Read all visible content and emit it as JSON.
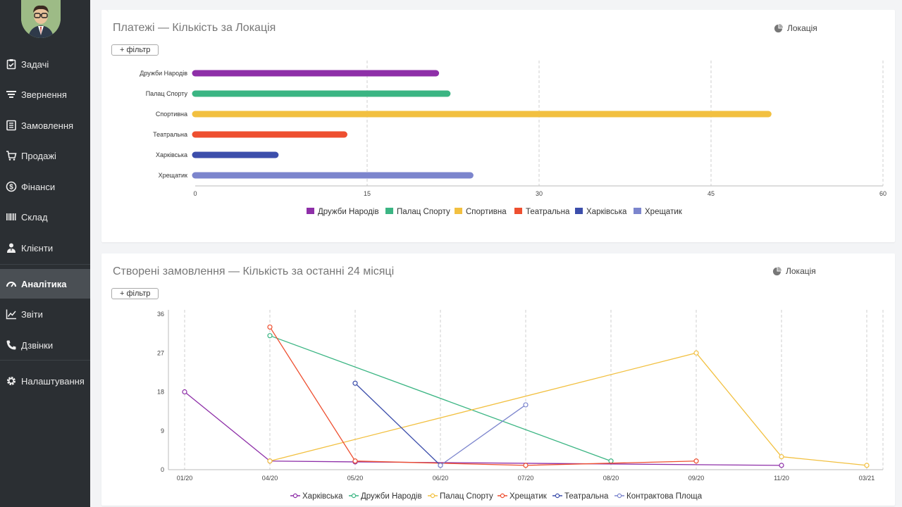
{
  "sidebar": {
    "items": [
      {
        "label": "Задачі",
        "icon": "clipboard-check-icon"
      },
      {
        "label": "Звернення",
        "icon": "filter-icon"
      },
      {
        "label": "Замовлення",
        "icon": "ledger-icon"
      },
      {
        "label": "Продажі",
        "icon": "cart-icon"
      },
      {
        "label": "Фінанси",
        "icon": "dollar-circle-icon"
      },
      {
        "label": "Склад",
        "icon": "barcode-icon"
      },
      {
        "label": "Клієнти",
        "icon": "user-tie-icon"
      },
      {
        "label": "Аналітика",
        "icon": "dashboard-gauge-icon",
        "active": true
      },
      {
        "label": "Звіти",
        "icon": "line-chart-icon"
      },
      {
        "label": "Дзвінки",
        "icon": "phone-icon"
      },
      {
        "label": "Налаштування",
        "icon": "gear-icon"
      }
    ]
  },
  "card1": {
    "title": "Платежі — Кількість за Локація",
    "group_label": "Локація",
    "filter_label": "+ фільтр"
  },
  "card2": {
    "title": "Створені замовлення — Кількість за останні 24 місяці",
    "group_label": "Локація",
    "filter_label": "+ фільтр"
  },
  "chart_data": [
    {
      "type": "bar",
      "orientation": "horizontal",
      "categories": [
        "Дружби Народів",
        "Палац Спорту",
        "Спортивна",
        "Театральна",
        "Харківська",
        "Хрещатик"
      ],
      "values": [
        21,
        22,
        50,
        13,
        7,
        24
      ],
      "colors": [
        "#8e2fa8",
        "#3bb583",
        "#f2c040",
        "#ee4f30",
        "#3c4eab",
        "#7c85cd"
      ],
      "xlim": [
        0,
        60
      ],
      "xticks": [
        0,
        15,
        30,
        45,
        60
      ],
      "grid": true,
      "legend_position": "bottom"
    },
    {
      "type": "line",
      "x": [
        "01/20",
        "04/20",
        "05/20",
        "06/20",
        "07/20",
        "08/20",
        "09/20",
        "11/20",
        "03/21"
      ],
      "ylim": [
        0,
        36
      ],
      "yticks": [
        0,
        9,
        18,
        27,
        36
      ],
      "grid": true,
      "legend_position": "bottom",
      "series": [
        {
          "name": "Харківська",
          "color": "#8e2fa8",
          "points": [
            [
              "01/20",
              18
            ],
            [
              "04/20",
              2
            ],
            [
              "05/20",
              1.8
            ],
            [
              "11/20",
              1
            ]
          ]
        },
        {
          "name": "Дружби Народів",
          "color": "#3bb583",
          "points": [
            [
              "04/20",
              31
            ],
            [
              "08/20",
              2
            ]
          ]
        },
        {
          "name": "Палац Спорту",
          "color": "#f2c040",
          "points": [
            [
              "04/20",
              2
            ],
            [
              "09/20",
              27
            ],
            [
              "11/20",
              3
            ],
            [
              "03/21",
              1
            ]
          ]
        },
        {
          "name": "Хрещатик",
          "color": "#ee4f30",
          "points": [
            [
              "04/20",
              33
            ],
            [
              "05/20",
              2
            ],
            [
              "07/20",
              1
            ],
            [
              "09/20",
              2
            ]
          ]
        },
        {
          "name": "Театральна",
          "color": "#3c4eab",
          "points": [
            [
              "05/20",
              20
            ],
            [
              "06/20",
              1
            ]
          ]
        },
        {
          "name": "Контрактова Площа",
          "color": "#7c85cd",
          "points": [
            [
              "06/20",
              1
            ],
            [
              "07/20",
              15
            ]
          ]
        }
      ]
    }
  ]
}
